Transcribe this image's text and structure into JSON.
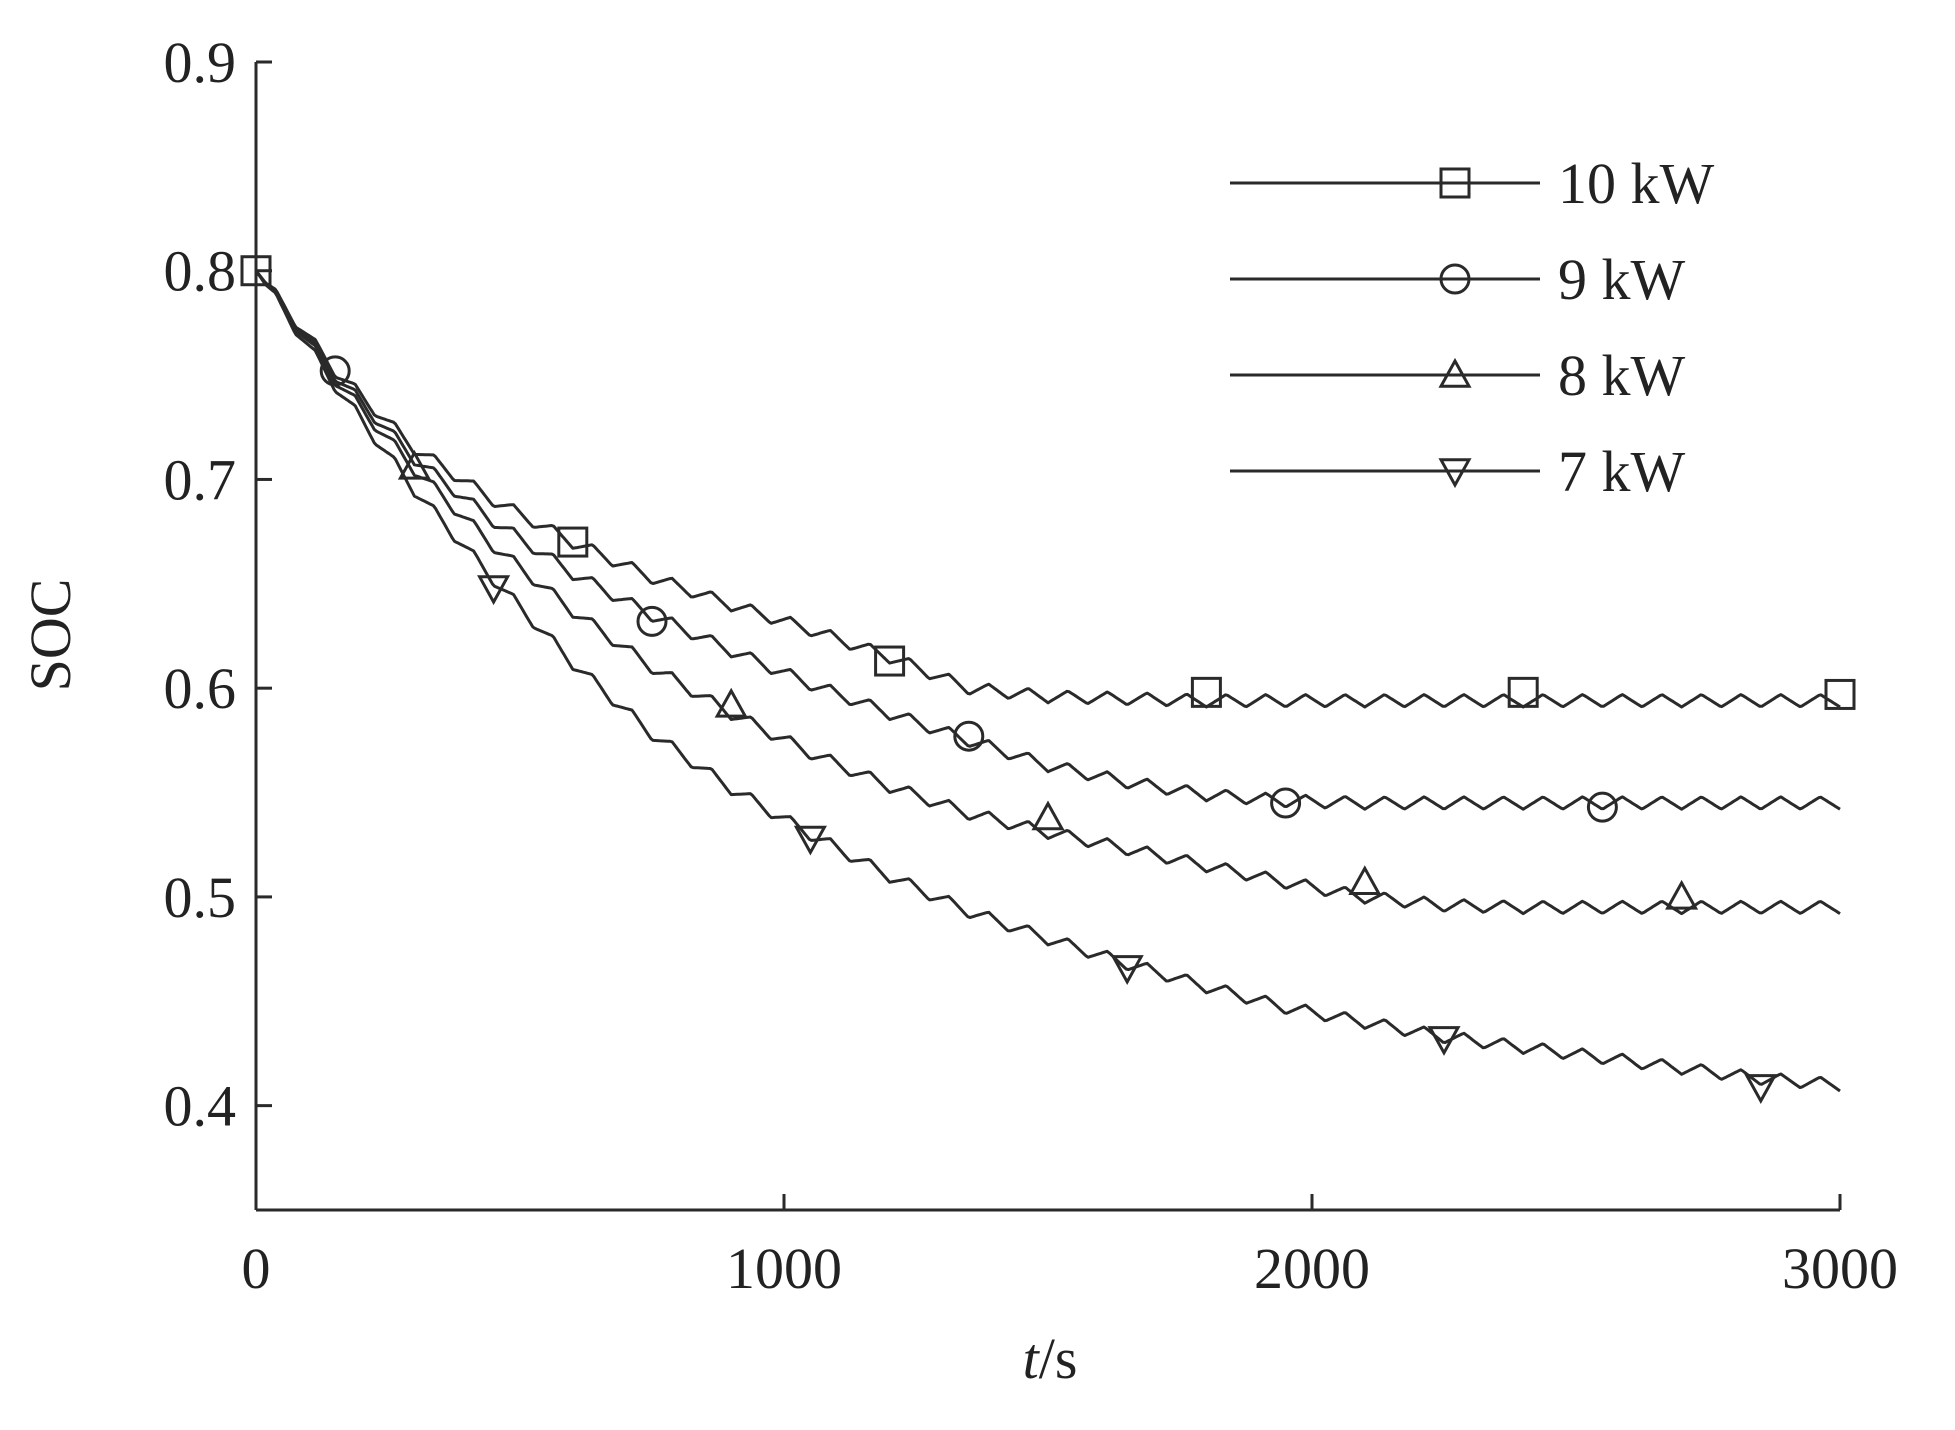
{
  "chart_data": {
    "type": "line",
    "title": "",
    "xlabel_italic": "t",
    "xlabel_unit": "/s",
    "ylabel": "SOC",
    "xlim": [
      0,
      3000
    ],
    "ylim": [
      0.35,
      0.9
    ],
    "xticks": [
      0,
      1000,
      2000,
      3000
    ],
    "xtick_labels": [
      "0",
      "1000",
      "2000",
      "3000"
    ],
    "yticks": [
      0.4,
      0.5,
      0.6,
      0.7,
      0.8,
      0.9
    ],
    "ytick_labels": [
      "0.4",
      "0.5",
      "0.6",
      "0.7",
      "0.8",
      "0.9"
    ],
    "grid": false,
    "legend_position": "top-right",
    "line_color": "#2a2a2a",
    "series": [
      {
        "name": "10 kW",
        "marker": "square",
        "x": [
          0,
          150,
          300,
          450,
          600,
          750,
          900,
          1050,
          1200,
          1350,
          1500,
          1650,
          1800,
          1950,
          2100,
          2250,
          2400,
          2550,
          2700,
          2850,
          3000
        ],
        "y": [
          0.8,
          0.752,
          0.715,
          0.69,
          0.67,
          0.653,
          0.64,
          0.628,
          0.615,
          0.6,
          0.596,
          0.595,
          0.594,
          0.594,
          0.594,
          0.594,
          0.594,
          0.594,
          0.594,
          0.594,
          0.594
        ],
        "markers_x": [
          0,
          600,
          1200,
          1800,
          2400,
          3000
        ],
        "markers_y": [
          0.8,
          0.67,
          0.613,
          0.598,
          0.598,
          0.597
        ]
      },
      {
        "name": "9 kW",
        "marker": "circle",
        "x": [
          0,
          150,
          300,
          450,
          600,
          750,
          900,
          1050,
          1200,
          1350,
          1500,
          1650,
          1800,
          1950,
          2100,
          2250,
          2400,
          2550,
          2700,
          2850,
          3000
        ],
        "y": [
          0.8,
          0.75,
          0.71,
          0.68,
          0.655,
          0.635,
          0.618,
          0.602,
          0.588,
          0.575,
          0.563,
          0.555,
          0.549,
          0.546,
          0.545,
          0.545,
          0.545,
          0.545,
          0.545,
          0.545,
          0.545
        ],
        "markers_x": [
          150,
          750,
          1350,
          1950,
          2550
        ],
        "markers_y": [
          0.752,
          0.632,
          0.577,
          0.545,
          0.543
        ]
      },
      {
        "name": "8 kW",
        "marker": "triangle-up",
        "x": [
          0,
          150,
          300,
          450,
          600,
          750,
          900,
          1050,
          1200,
          1350,
          1500,
          1650,
          1800,
          1950,
          2100,
          2250,
          2400,
          2550,
          2700,
          2850,
          3000
        ],
        "y": [
          0.8,
          0.748,
          0.705,
          0.668,
          0.637,
          0.61,
          0.588,
          0.569,
          0.553,
          0.54,
          0.531,
          0.523,
          0.515,
          0.507,
          0.5,
          0.496,
          0.495,
          0.495,
          0.495,
          0.495,
          0.495
        ],
        "markers_x": [
          300,
          900,
          1500,
          2100,
          2700
        ],
        "markers_y": [
          0.706,
          0.592,
          0.538,
          0.507,
          0.5
        ]
      },
      {
        "name": "7 kW",
        "marker": "triangle-down",
        "x": [
          0,
          150,
          300,
          450,
          600,
          750,
          900,
          1050,
          1200,
          1350,
          1500,
          1650,
          1800,
          1950,
          2100,
          2250,
          2400,
          2550,
          2700,
          2850,
          3000
        ],
        "y": [
          0.8,
          0.745,
          0.695,
          0.652,
          0.612,
          0.578,
          0.552,
          0.53,
          0.51,
          0.493,
          0.48,
          0.468,
          0.457,
          0.447,
          0.44,
          0.433,
          0.428,
          0.423,
          0.418,
          0.413,
          0.41
        ],
        "markers_x": [
          450,
          1050,
          1650,
          2250,
          2850
        ],
        "markers_y": [
          0.648,
          0.528,
          0.466,
          0.432,
          0.409
        ]
      }
    ]
  }
}
